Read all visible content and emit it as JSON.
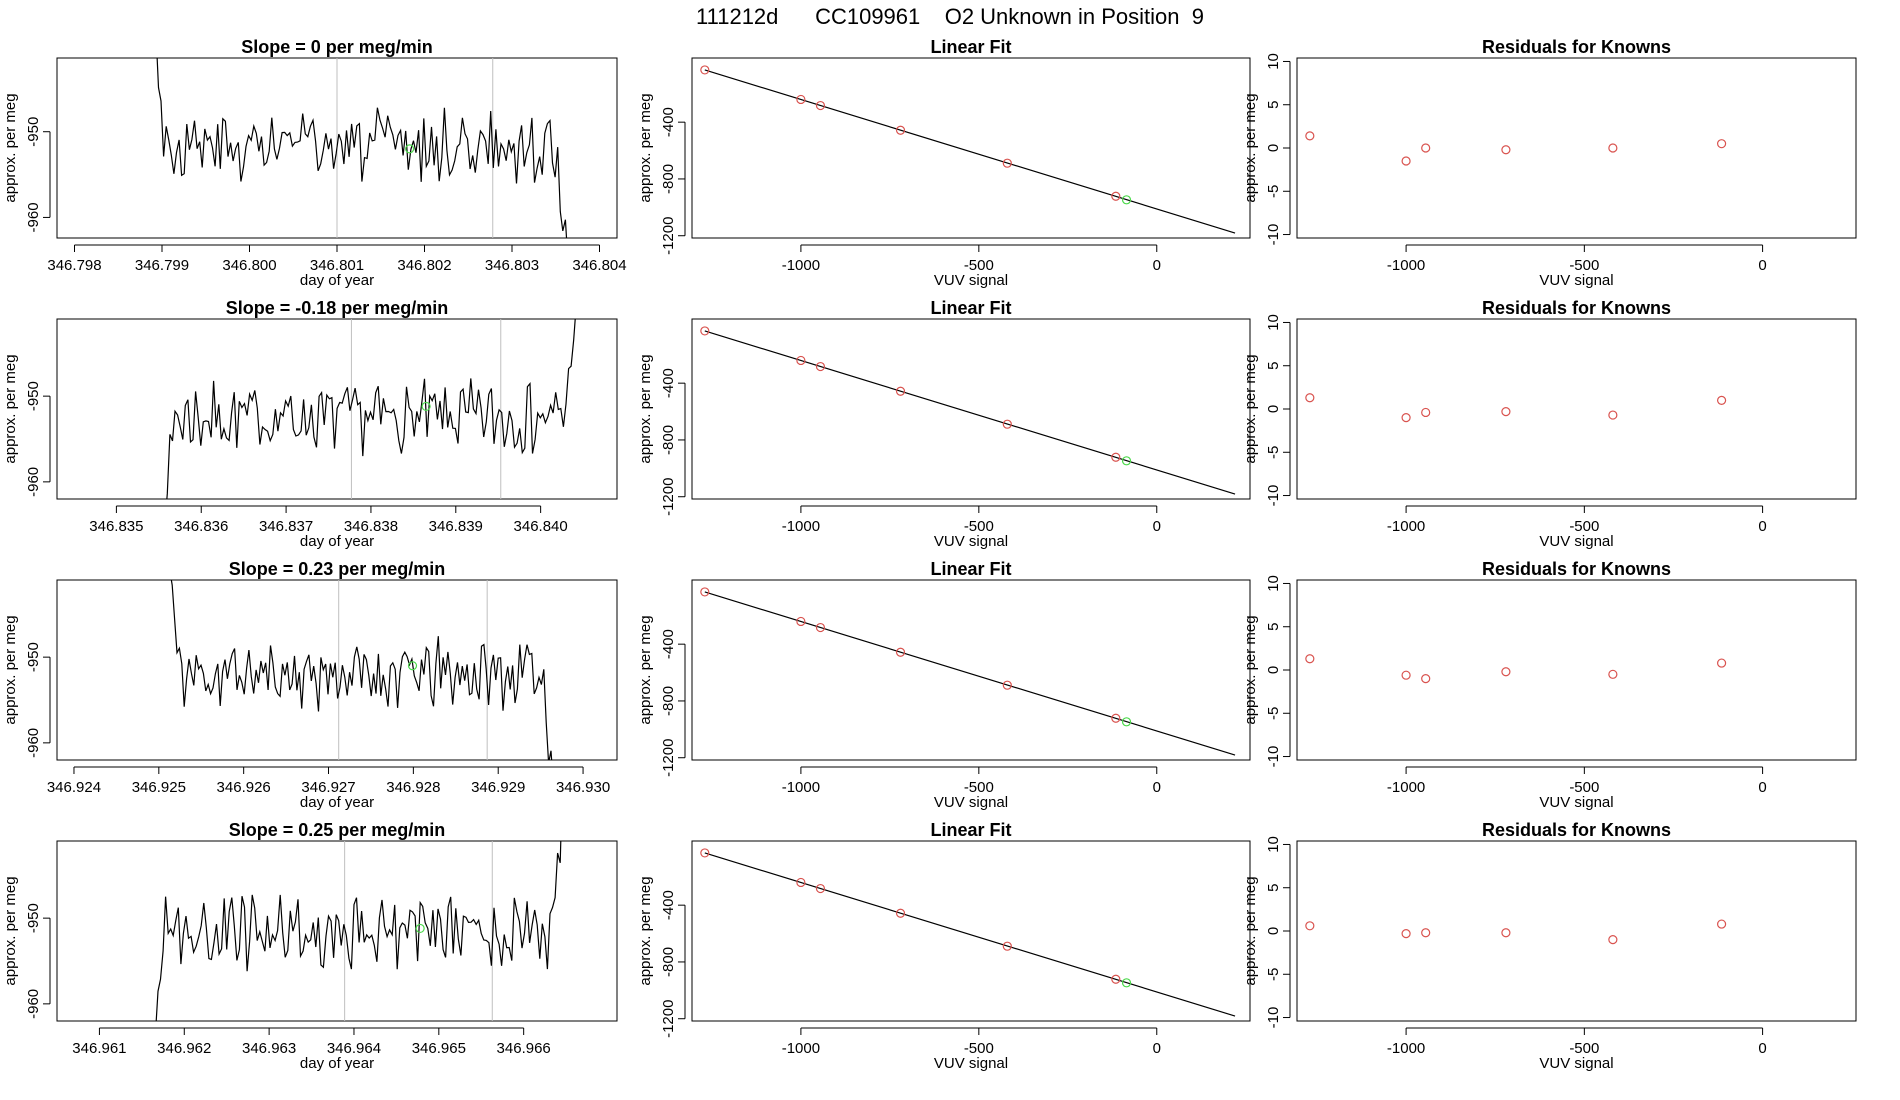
{
  "header": {
    "title": "111212d      CC109961    O2 Unknown in Position  9"
  },
  "common": {
    "ts_xlabel": "day of year",
    "ts_ylabel": "approx. per meg",
    "fit_title": "Linear Fit",
    "fit_xlabel": "VUV signal",
    "fit_ylabel": "approx. per meg",
    "res_title": "Residuals for Knowns",
    "res_xlabel": "VUV signal",
    "res_ylabel": "approx. per meg"
  },
  "colors": {
    "line": "#000000",
    "known_points": "#d9534f",
    "unknown_point": "#4cd94c",
    "vline": "#bfbfbf",
    "box": "#000000"
  },
  "chart_data": [
    {
      "type": "line",
      "title": "Slope =  0  per meg/min",
      "xlabel": "day of year",
      "ylabel": "approx. per meg",
      "xlim": [
        346.7978,
        346.8042
      ],
      "ylim": [
        -962.4,
        -941.4
      ],
      "xticks": [
        "346.798",
        "346.799",
        "346.800",
        "346.801",
        "346.802",
        "346.803",
        "346.804"
      ],
      "xtick_values": [
        346.798,
        346.799,
        346.8,
        346.801,
        346.802,
        346.803,
        346.804
      ],
      "yticks": [
        "-960",
        "-950"
      ],
      "ytick_values": [
        -960,
        -950
      ],
      "series_start": 346.79893,
      "series_end": 346.80364,
      "mean": -951.8,
      "seed": 3,
      "vlines": [
        346.801,
        346.80278
      ],
      "unknown_point": {
        "x": 346.80183,
        "y": -952.0
      }
    },
    {
      "type": "line",
      "title": "Slope =  -0.18  per meg/min",
      "xlabel": "day of year",
      "ylabel": "approx. per meg",
      "xlim": [
        346.8343,
        346.8409
      ],
      "ylim": [
        -962.0,
        -941.0
      ],
      "xticks": [
        "346.835",
        "346.836",
        "346.837",
        "346.838",
        "346.839",
        "346.840"
      ],
      "xtick_values": [
        346.835,
        346.836,
        346.837,
        346.838,
        346.839,
        346.84
      ],
      "yticks": [
        "-960",
        "-950"
      ],
      "ytick_values": [
        -960,
        -950
      ],
      "series_start": 346.83557,
      "series_end": 346.84042,
      "mean": -952.5,
      "seed": 7,
      "vlines": [
        346.83777,
        346.83953
      ],
      "unknown_point": {
        "x": 346.83865,
        "y": -951.2
      }
    },
    {
      "type": "line",
      "title": "Slope =  0.23  per meg/min",
      "xlabel": "day of year",
      "ylabel": "approx. per meg",
      "xlim": [
        346.9238,
        346.9304
      ],
      "ylim": [
        -962.0,
        -941.0
      ],
      "xticks": [
        "346.924",
        "346.925",
        "346.926",
        "346.927",
        "346.928",
        "346.929",
        "346.930"
      ],
      "xtick_values": [
        346.924,
        346.925,
        346.926,
        346.927,
        346.928,
        346.929,
        346.93
      ],
      "yticks": [
        "-960",
        "-950"
      ],
      "ytick_values": [
        -960,
        -950
      ],
      "series_start": 346.92513,
      "series_end": 346.92965,
      "mean": -952.0,
      "seed": 11,
      "vlines": [
        346.92712,
        346.92887
      ],
      "unknown_point": {
        "x": 346.92799,
        "y": -951.0
      }
    },
    {
      "type": "line",
      "title": "Slope =  0.25  per meg/min",
      "xlabel": "day of year",
      "ylabel": "approx. per meg",
      "xlim": [
        346.9605,
        346.9671
      ],
      "ylim": [
        -962.0,
        -941.0
      ],
      "xticks": [
        "346.961",
        "346.962",
        "346.963",
        "346.964",
        "346.965",
        "346.966"
      ],
      "xtick_values": [
        346.961,
        346.962,
        346.963,
        346.964,
        346.965,
        346.966
      ],
      "yticks": [
        "-960",
        "-950"
      ],
      "ytick_values": [
        -960,
        -950
      ],
      "series_start": 346.96166,
      "series_end": 346.96646,
      "mean": -951.5,
      "seed": 19,
      "vlines": [
        346.96389,
        346.96563
      ],
      "unknown_point": {
        "x": 346.96478,
        "y": -951.2
      }
    },
    {
      "type": "scatter",
      "title": "Linear Fit",
      "xlabel": "VUV signal",
      "ylabel": "approx. per meg",
      "xlim": [
        -1306,
        262
      ],
      "ylim": [
        -1216,
        52
      ],
      "xtick_values": [
        -1000,
        -500,
        0
      ],
      "xticks": [
        "-1000",
        "-500",
        "0"
      ],
      "ytick_values": [
        -1200,
        -800,
        -400
      ],
      "yticks": [
        "-1200",
        "-800",
        "-400"
      ],
      "fit_line": {
        "x": [
          -1270,
          220
        ],
        "y": [
          -32,
          -1181
        ]
      },
      "knowns": {
        "x": [
          -1270,
          -1000,
          -945,
          -720,
          -420,
          -115
        ],
        "y": [
          -32,
          -240,
          -283,
          -457,
          -689,
          -922
        ]
      },
      "unknown": {
        "x": -85,
        "y": -947
      }
    },
    {
      "type": "scatter",
      "title": "Linear Fit",
      "xlabel": "VUV signal",
      "ylabel": "approx. per meg",
      "xlim": [
        -1306,
        262
      ],
      "ylim": [
        -1216,
        52
      ],
      "xtick_values": [
        -1000,
        -500,
        0
      ],
      "xticks": [
        "-1000",
        "-500",
        "0"
      ],
      "ytick_values": [
        -1200,
        -800,
        -400
      ],
      "yticks": [
        "-1200",
        "-800",
        "-400"
      ],
      "fit_line": {
        "x": [
          -1270,
          220
        ],
        "y": [
          -32,
          -1181
        ]
      },
      "knowns": {
        "x": [
          -1270,
          -1000,
          -945,
          -720,
          -420,
          -115
        ],
        "y": [
          -32,
          -240,
          -283,
          -457,
          -689,
          -922
        ]
      },
      "unknown": {
        "x": -85,
        "y": -947
      }
    },
    {
      "type": "scatter",
      "title": "Linear Fit",
      "xlabel": "VUV signal",
      "ylabel": "approx. per meg",
      "xlim": [
        -1306,
        262
      ],
      "ylim": [
        -1216,
        52
      ],
      "xtick_values": [
        -1000,
        -500,
        0
      ],
      "xticks": [
        "-1000",
        "-500",
        "0"
      ],
      "ytick_values": [
        -1200,
        -800,
        -400
      ],
      "yticks": [
        "-1200",
        "-800",
        "-400"
      ],
      "fit_line": {
        "x": [
          -1270,
          220
        ],
        "y": [
          -32,
          -1181
        ]
      },
      "knowns": {
        "x": [
          -1270,
          -1000,
          -945,
          -720,
          -420,
          -115
        ],
        "y": [
          -32,
          -240,
          -283,
          -457,
          -689,
          -922
        ]
      },
      "unknown": {
        "x": -85,
        "y": -947
      }
    },
    {
      "type": "scatter",
      "title": "Linear Fit",
      "xlabel": "VUV signal",
      "ylabel": "approx. per meg",
      "xlim": [
        -1306,
        262
      ],
      "ylim": [
        -1216,
        52
      ],
      "xtick_values": [
        -1000,
        -500,
        0
      ],
      "xticks": [
        "-1000",
        "-500",
        "0"
      ],
      "ytick_values": [
        -1200,
        -800,
        -400
      ],
      "yticks": [
        "-1200",
        "-800",
        "-400"
      ],
      "fit_line": {
        "x": [
          -1270,
          220
        ],
        "y": [
          -32,
          -1181
        ]
      },
      "knowns": {
        "x": [
          -1270,
          -1000,
          -945,
          -720,
          -420,
          -115
        ],
        "y": [
          -32,
          -240,
          -283,
          -457,
          -689,
          -922
        ]
      },
      "unknown": {
        "x": -85,
        "y": -947
      }
    },
    {
      "type": "scatter",
      "title": "Residuals for Knowns",
      "xlabel": "VUV signal",
      "ylabel": "approx. per meg",
      "xlim": [
        -1306,
        262
      ],
      "ylim": [
        -10.4,
        10.4
      ],
      "xtick_values": [
        -1000,
        -500,
        0
      ],
      "xticks": [
        "-1000",
        "-500",
        "0"
      ],
      "ytick_values": [
        -10,
        -5,
        0,
        5,
        10
      ],
      "yticks": [
        "-10",
        "-5",
        "0",
        "5",
        "10"
      ],
      "x": [
        -1270,
        -1000,
        -945,
        -720,
        -420,
        -115
      ],
      "y": [
        1.4,
        -1.5,
        0.0,
        -0.2,
        0.0,
        0.5
      ]
    },
    {
      "type": "scatter",
      "title": "Residuals for Knowns",
      "xlabel": "VUV signal",
      "ylabel": "approx. per meg",
      "xlim": [
        -1306,
        262
      ],
      "ylim": [
        -10.4,
        10.4
      ],
      "xtick_values": [
        -1000,
        -500,
        0
      ],
      "xticks": [
        "-1000",
        "-500",
        "0"
      ],
      "ytick_values": [
        -10,
        -5,
        0,
        5,
        10
      ],
      "yticks": [
        "-10",
        "-5",
        "0",
        "5",
        "10"
      ],
      "x": [
        -1270,
        -1000,
        -945,
        -720,
        -420,
        -115
      ],
      "y": [
        1.3,
        -1.0,
        -0.4,
        -0.3,
        -0.7,
        1.0
      ]
    },
    {
      "type": "scatter",
      "title": "Residuals for Knowns",
      "xlabel": "VUV signal",
      "ylabel": "approx. per meg",
      "xlim": [
        -1306,
        262
      ],
      "ylim": [
        -10.4,
        10.4
      ],
      "xtick_values": [
        -1000,
        -500,
        0
      ],
      "xticks": [
        "-1000",
        "-500",
        "0"
      ],
      "ytick_values": [
        -10,
        -5,
        0,
        5,
        10
      ],
      "yticks": [
        "-10",
        "-5",
        "0",
        "5",
        "10"
      ],
      "x": [
        -1270,
        -1000,
        -945,
        -720,
        -420,
        -115
      ],
      "y": [
        1.3,
        -0.6,
        -1.0,
        -0.2,
        -0.5,
        0.8
      ]
    },
    {
      "type": "scatter",
      "title": "Residuals for Knowns",
      "xlabel": "VUV signal",
      "ylabel": "approx. per meg",
      "xlim": [
        -1306,
        262
      ],
      "ylim": [
        -10.4,
        10.4
      ],
      "xtick_values": [
        -1000,
        -500,
        0
      ],
      "xticks": [
        "-1000",
        "-500",
        "0"
      ],
      "ytick_values": [
        -10,
        -5,
        0,
        5,
        10
      ],
      "yticks": [
        "-10",
        "-5",
        "0",
        "5",
        "10"
      ],
      "x": [
        -1270,
        -1000,
        -945,
        -720,
        -420,
        -115
      ],
      "y": [
        0.6,
        -0.3,
        -0.2,
        -0.2,
        -1.0,
        0.8
      ]
    }
  ]
}
